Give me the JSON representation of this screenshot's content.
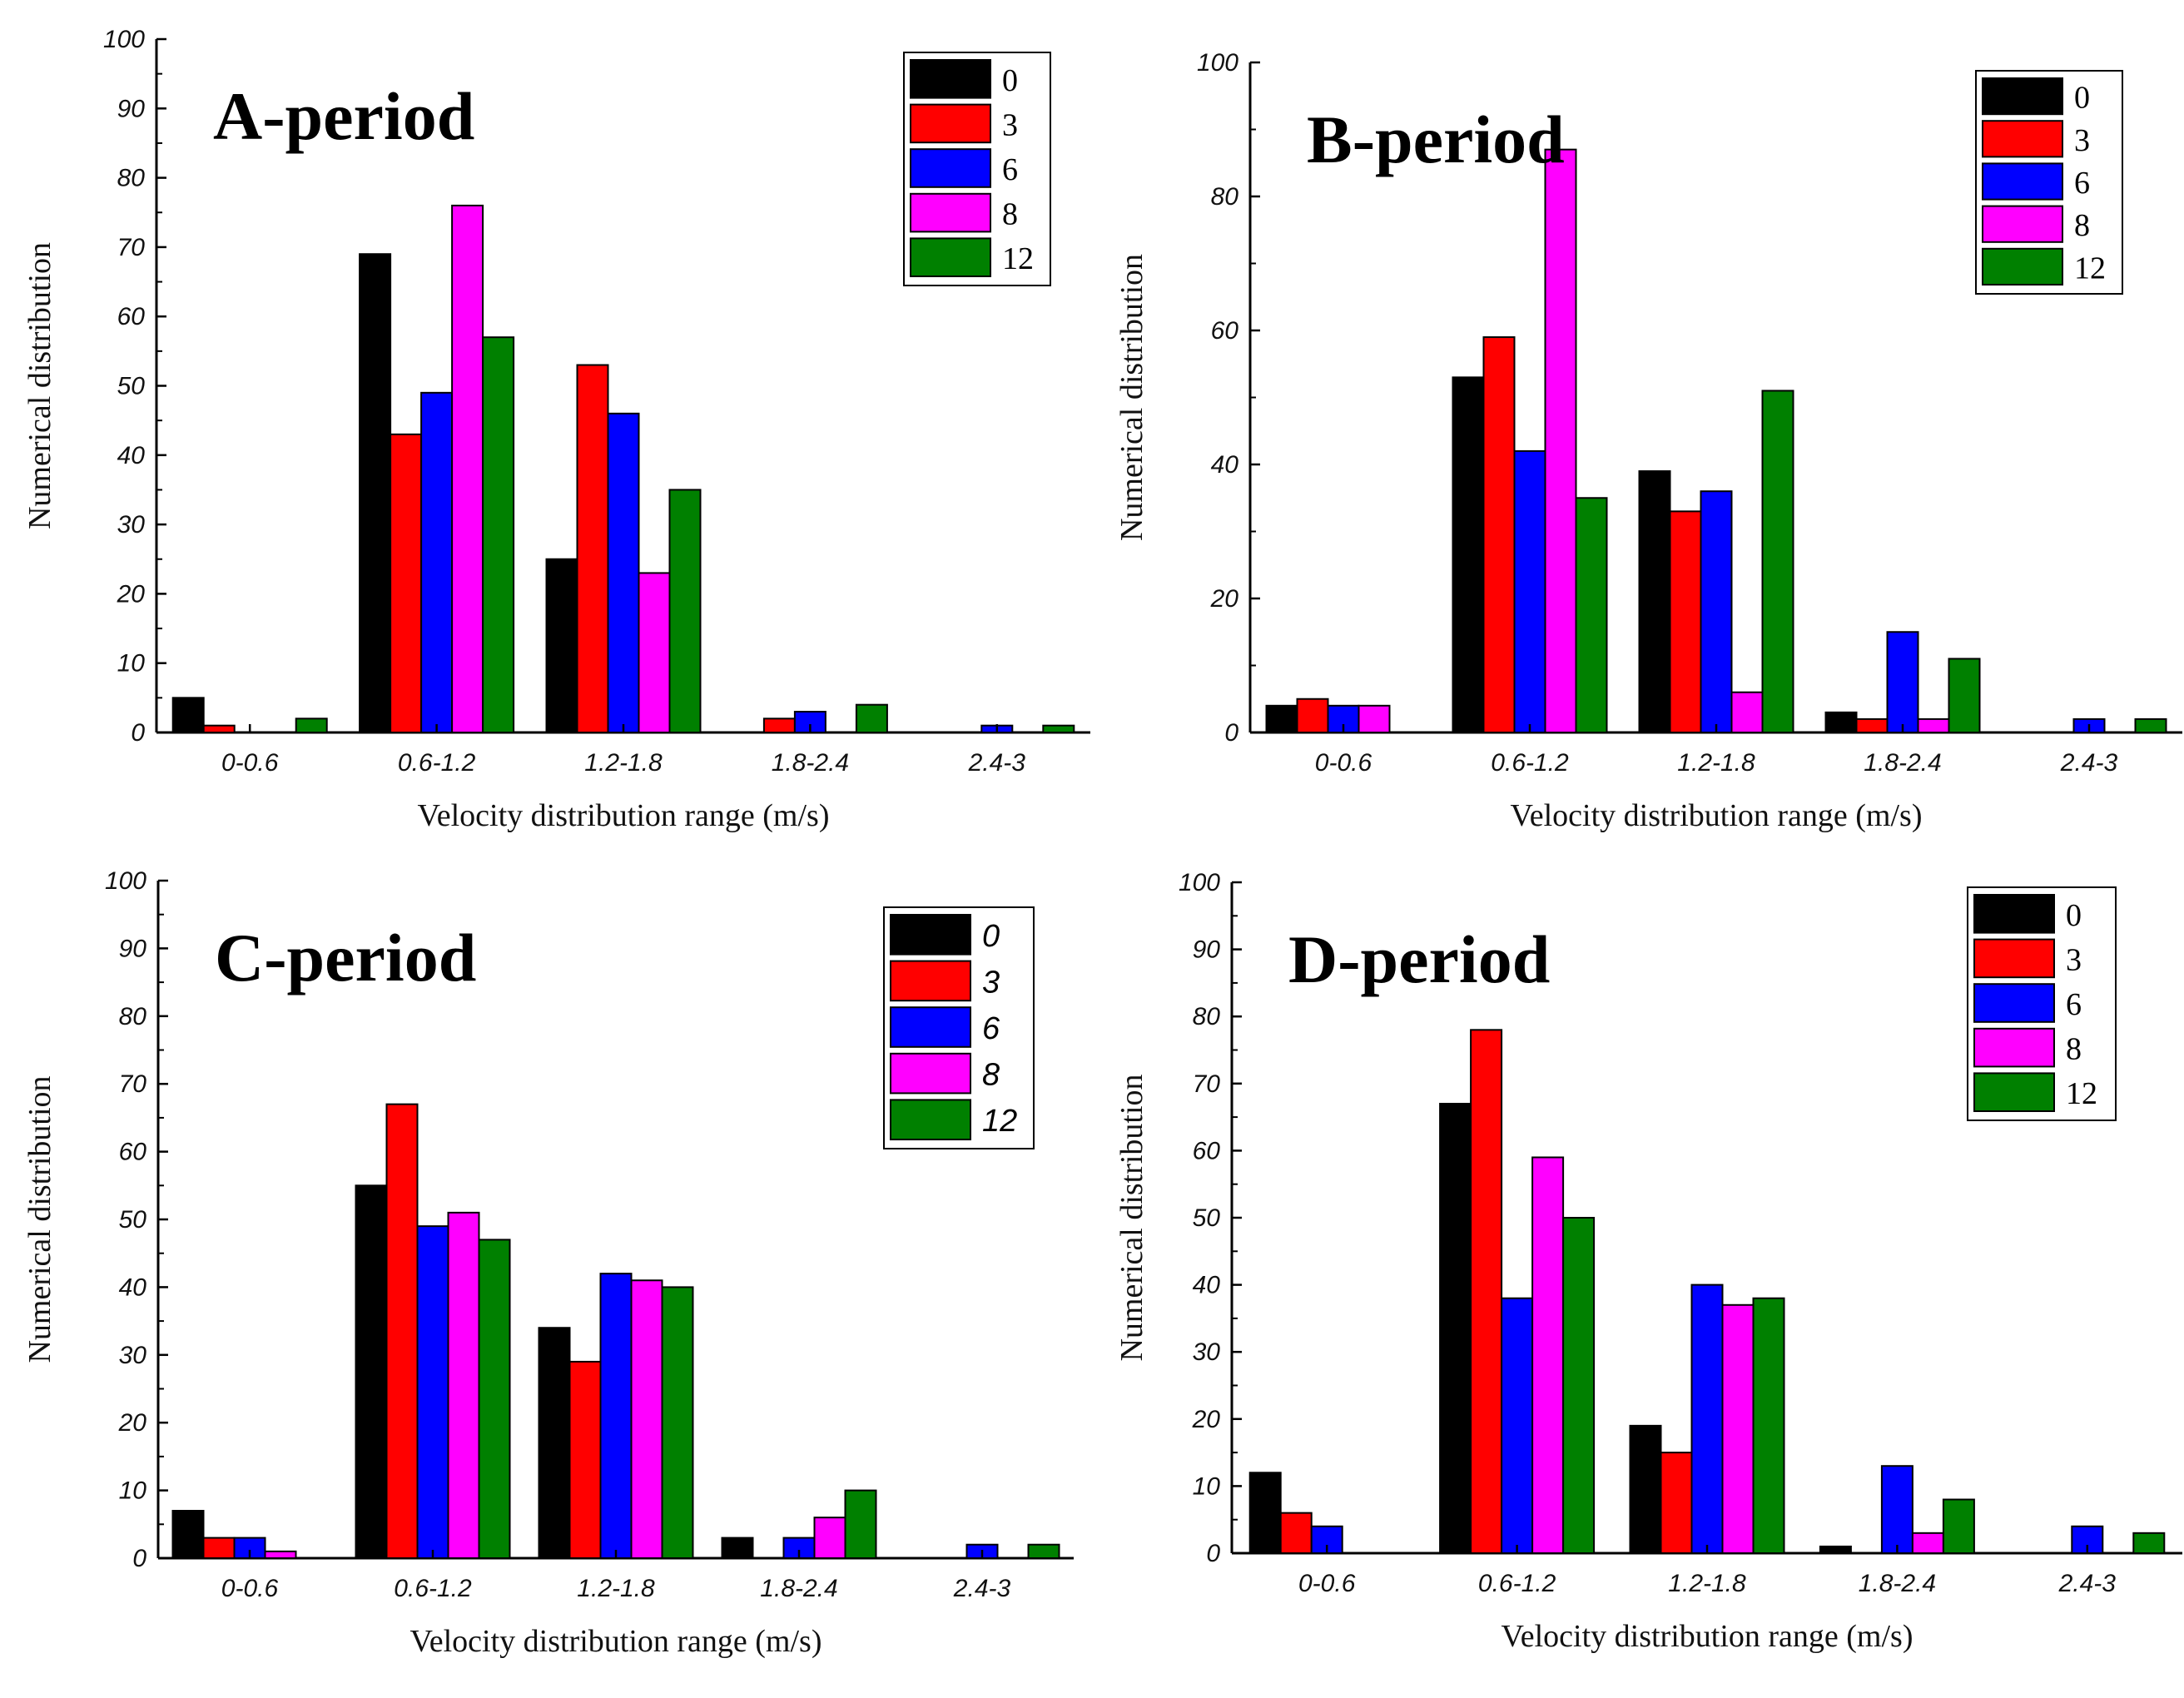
{
  "chart_data": [
    {
      "type": "bar",
      "title": "A-period",
      "xlabel": "Velocity distribution range (m/s)",
      "ylabel": "Numerical distribution",
      "ylim": [
        0,
        100
      ],
      "yticks": [
        "0",
        "10",
        "20",
        "30",
        "40",
        "50",
        "60",
        "70",
        "80",
        "90",
        "100"
      ],
      "categories": [
        "0-0.6",
        "0.6-1.2",
        "1.2-1.8",
        "1.8-2.4",
        "2.4-3"
      ],
      "legend_position": "top-right",
      "series": [
        {
          "name": "0",
          "color": "#000000",
          "values": [
            5,
            69,
            25,
            0,
            0
          ]
        },
        {
          "name": "3",
          "color": "#ff0000",
          "values": [
            1,
            43,
            53,
            2,
            0
          ]
        },
        {
          "name": "6",
          "color": "#0000ff",
          "values": [
            0,
            49,
            46,
            3,
            1
          ]
        },
        {
          "name": "8",
          "color": "#ff00ff",
          "values": [
            0,
            76,
            23,
            0,
            0
          ]
        },
        {
          "name": "12",
          "color": "#008000",
          "values": [
            2,
            57,
            35,
            4,
            1
          ]
        }
      ]
    },
    {
      "type": "bar",
      "title": "B-period",
      "xlabel": "Velocity distribution range (m/s)",
      "ylabel": "Numerical distribution",
      "ylim": [
        0,
        100
      ],
      "yticks": [
        "0",
        "20",
        "40",
        "60",
        "80",
        "100"
      ],
      "categories": [
        "0-0.6",
        "0.6-1.2",
        "1.2-1.8",
        "1.8-2.4",
        "2.4-3"
      ],
      "legend_position": "top-right",
      "series": [
        {
          "name": "0",
          "color": "#000000",
          "values": [
            4,
            53,
            39,
            3,
            0
          ]
        },
        {
          "name": "3",
          "color": "#ff0000",
          "values": [
            5,
            59,
            33,
            2,
            0
          ]
        },
        {
          "name": "6",
          "color": "#0000ff",
          "values": [
            4,
            42,
            36,
            15,
            2
          ]
        },
        {
          "name": "8",
          "color": "#ff00ff",
          "values": [
            4,
            87,
            6,
            2,
            0
          ]
        },
        {
          "name": "12",
          "color": "#008000",
          "values": [
            0,
            35,
            51,
            11,
            2
          ]
        }
      ]
    },
    {
      "type": "bar",
      "title": "C-period",
      "xlabel": "Velocity distribution range (m/s)",
      "ylabel": "Numerical distribution",
      "ylim": [
        0,
        100
      ],
      "yticks": [
        "0",
        "10",
        "20",
        "30",
        "40",
        "50",
        "60",
        "70",
        "80",
        "90",
        "100"
      ],
      "categories": [
        "0-0.6",
        "0.6-1.2",
        "1.2-1.8",
        "1.8-2.4",
        "2.4-3"
      ],
      "legend_position": "top-right",
      "series": [
        {
          "name": "0",
          "color": "#000000",
          "values": [
            7,
            55,
            34,
            3,
            0
          ]
        },
        {
          "name": "3",
          "color": "#ff0000",
          "values": [
            3,
            67,
            29,
            0,
            0
          ]
        },
        {
          "name": "6",
          "color": "#0000ff",
          "values": [
            3,
            49,
            42,
            3,
            2
          ]
        },
        {
          "name": "8",
          "color": "#ff00ff",
          "values": [
            1,
            51,
            41,
            6,
            0
          ]
        },
        {
          "name": "12",
          "color": "#008000",
          "values": [
            0,
            47,
            40,
            10,
            2
          ]
        }
      ]
    },
    {
      "type": "bar",
      "title": "D-period",
      "xlabel": "Velocity distribution range (m/s)",
      "ylabel": "Numerical distribution",
      "ylim": [
        0,
        100
      ],
      "yticks": [
        "0",
        "10",
        "20",
        "30",
        "40",
        "50",
        "60",
        "70",
        "80",
        "90",
        "100"
      ],
      "categories": [
        "0-0.6",
        "0.6-1.2",
        "1.2-1.8",
        "1.8-2.4",
        "2.4-3"
      ],
      "legend_position": "top-right",
      "series": [
        {
          "name": "0",
          "color": "#000000",
          "values": [
            12,
            67,
            19,
            1,
            0
          ]
        },
        {
          "name": "3",
          "color": "#ff0000",
          "values": [
            6,
            78,
            15,
            0,
            0
          ]
        },
        {
          "name": "6",
          "color": "#0000ff",
          "values": [
            4,
            38,
            40,
            13,
            4
          ]
        },
        {
          "name": "8",
          "color": "#ff00ff",
          "values": [
            0,
            59,
            37,
            3,
            0
          ]
        },
        {
          "name": "12",
          "color": "#008000",
          "values": [
            0,
            50,
            38,
            8,
            3
          ]
        }
      ]
    }
  ]
}
